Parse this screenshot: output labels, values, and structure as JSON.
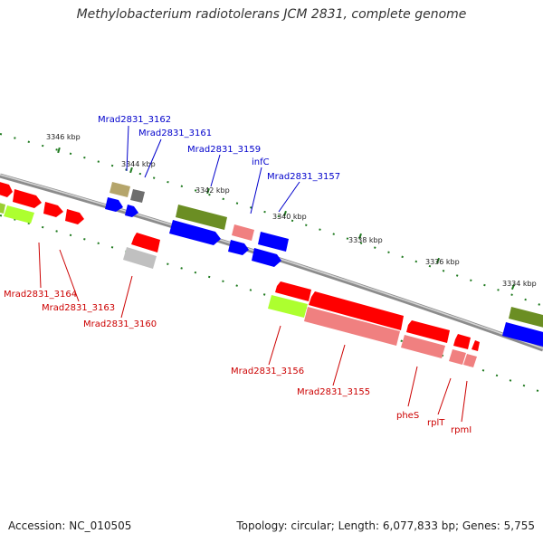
{
  "title": "Methylobacterium radiotolerans JCM 2831, complete genome",
  "footer": {
    "accession": "Accession: NC_010505",
    "summary": "Topology: circular; Length: 6,077,833 bp; Genes: 5,755"
  },
  "colors": {
    "forward_label": "#0000cc",
    "reverse_label": "#cc0000",
    "ruler_dots": "#1f7a1f",
    "backbone": "#999999"
  },
  "ruler": {
    "unit": "kbp",
    "labels": [
      "3346 kbp",
      "3344 kbp",
      "3342 kbp",
      "3340 kbp",
      "3338 kbp",
      "3336 kbp",
      "3334 kbp"
    ]
  },
  "forward_genes": [
    "Mrad2831_3162",
    "Mrad2831_3161",
    "Mrad2831_3159",
    "infC",
    "Mrad2831_3157"
  ],
  "reverse_genes": [
    "Mrad2831_3164",
    "Mrad2831_3163",
    "Mrad2831_3160",
    "Mrad2831_3156",
    "Mrad2831_3155",
    "pheS",
    "rplT",
    "rpmI"
  ]
}
